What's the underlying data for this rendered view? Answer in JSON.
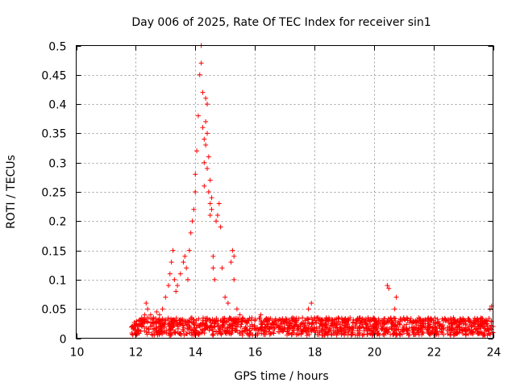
{
  "chart_data": {
    "type": "scatter",
    "title": "Day 006 of 2025, Rate Of TEC Index for receiver sin1",
    "xlabel": "GPS time / hours",
    "ylabel": "ROTI / TECUs",
    "xlim": [
      10,
      24
    ],
    "ylim": [
      0,
      0.5
    ],
    "grid": true,
    "marker": "+",
    "color": "#ff0000",
    "x_ticks": [
      10,
      12,
      14,
      16,
      18,
      20,
      22,
      24
    ],
    "x_tick_labels": [
      "10",
      "12",
      "14",
      "16",
      "18",
      "20",
      "22",
      "24"
    ],
    "y_ticks": [
      0,
      0.05,
      0.1,
      0.15,
      0.2,
      0.25,
      0.3,
      0.35,
      0.4,
      0.45,
      0.5
    ],
    "y_tick_labels": [
      "0",
      "0.05",
      "0.1",
      "0.15",
      "0.2",
      "0.25",
      "0.3",
      "0.35",
      "0.4",
      "0.45",
      "0.5"
    ],
    "series": [
      {
        "name": "sin1",
        "x": [
          11.9,
          12.0,
          12.1,
          12.2,
          12.3,
          12.35,
          12.4,
          12.5,
          12.6,
          12.7,
          12.8,
          12.9,
          13.0,
          13.1,
          13.15,
          13.2,
          13.25,
          13.3,
          13.35,
          13.4,
          13.5,
          13.6,
          13.65,
          13.7,
          13.75,
          13.8,
          13.85,
          13.9,
          13.95,
          14.0,
          14.0,
          14.05,
          14.1,
          14.15,
          14.2,
          14.2,
          14.25,
          14.25,
          14.3,
          14.3,
          14.3,
          14.35,
          14.35,
          14.35,
          14.4,
          14.4,
          14.4,
          14.45,
          14.45,
          14.5,
          14.5,
          14.5,
          14.55,
          14.55,
          14.6,
          14.6,
          14.65,
          14.7,
          14.75,
          14.8,
          14.85,
          14.9,
          15.0,
          15.1,
          15.2,
          15.25,
          15.3,
          15.3,
          15.4,
          15.5,
          15.6,
          15.7,
          15.8,
          15.9,
          16.0,
          16.2,
          16.4,
          16.6,
          16.8,
          17.0,
          17.2,
          17.4,
          17.6,
          17.8,
          17.9,
          18.0,
          18.2,
          18.4,
          18.6,
          18.8,
          19.0,
          19.2,
          19.4,
          19.6,
          19.8,
          20.0,
          20.2,
          20.45,
          20.5,
          20.7,
          20.75,
          21.0,
          21.2,
          21.4,
          21.6,
          21.8,
          22.0,
          22.2,
          22.4,
          22.6,
          22.8,
          23.0,
          23.2,
          23.4,
          23.6,
          23.8,
          23.9,
          23.95,
          24.0
        ],
        "y": [
          0.02,
          0.025,
          0.03,
          0.035,
          0.04,
          0.06,
          0.05,
          0.04,
          0.035,
          0.045,
          0.04,
          0.05,
          0.07,
          0.09,
          0.11,
          0.13,
          0.15,
          0.1,
          0.08,
          0.09,
          0.11,
          0.13,
          0.14,
          0.12,
          0.1,
          0.15,
          0.18,
          0.2,
          0.22,
          0.25,
          0.28,
          0.32,
          0.38,
          0.45,
          0.5,
          0.47,
          0.42,
          0.36,
          0.34,
          0.3,
          0.26,
          0.33,
          0.37,
          0.41,
          0.4,
          0.35,
          0.29,
          0.31,
          0.25,
          0.27,
          0.23,
          0.21,
          0.24,
          0.22,
          0.14,
          0.12,
          0.1,
          0.2,
          0.21,
          0.23,
          0.19,
          0.12,
          0.07,
          0.06,
          0.13,
          0.15,
          0.14,
          0.1,
          0.05,
          0.04,
          0.035,
          0.03,
          0.03,
          0.035,
          0.03,
          0.04,
          0.03,
          0.025,
          0.03,
          0.03,
          0.025,
          0.03,
          0.035,
          0.05,
          0.06,
          0.035,
          0.03,
          0.035,
          0.03,
          0.035,
          0.03,
          0.035,
          0.03,
          0.03,
          0.035,
          0.03,
          0.03,
          0.09,
          0.085,
          0.05,
          0.07,
          0.035,
          0.03,
          0.03,
          0.025,
          0.03,
          0.03,
          0.025,
          0.03,
          0.025,
          0.03,
          0.025,
          0.02,
          0.025,
          0.02,
          0.025,
          0.05,
          0.055,
          0.02
        ]
      }
    ],
    "baseline_band": {
      "description": "dense cluster of low ROTI values",
      "x_range": [
        11.85,
        24.0
      ],
      "y_range": [
        0.005,
        0.035
      ]
    }
  }
}
